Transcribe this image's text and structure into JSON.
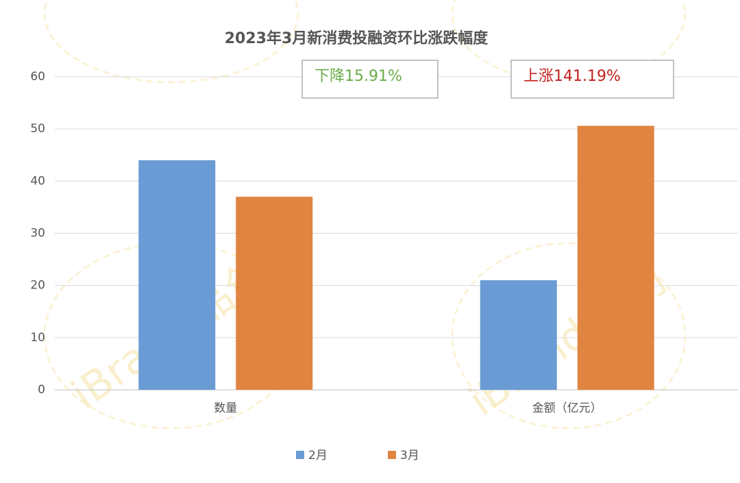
{
  "chart_data": {
    "type": "bar",
    "title": "2023年3月新消费投融资环比涨跌幅度",
    "categories": [
      "数量",
      "金额（亿元）"
    ],
    "series": [
      {
        "name": "2月",
        "color": "#6a9bd4",
        "values": [
          44,
          21
        ]
      },
      {
        "name": "3月",
        "color": "#e08441",
        "values": [
          37,
          50.6
        ]
      }
    ],
    "ylim": [
      0,
      60
    ],
    "yticks": [
      0,
      10,
      20,
      30,
      40,
      50,
      60
    ],
    "grid": true,
    "annotations": [
      {
        "text": "下降15.91%",
        "color": "#6aab47"
      },
      {
        "text": "上涨141.19%",
        "color": "#c01f1b"
      }
    ],
    "watermark": "iBrandi品创"
  }
}
